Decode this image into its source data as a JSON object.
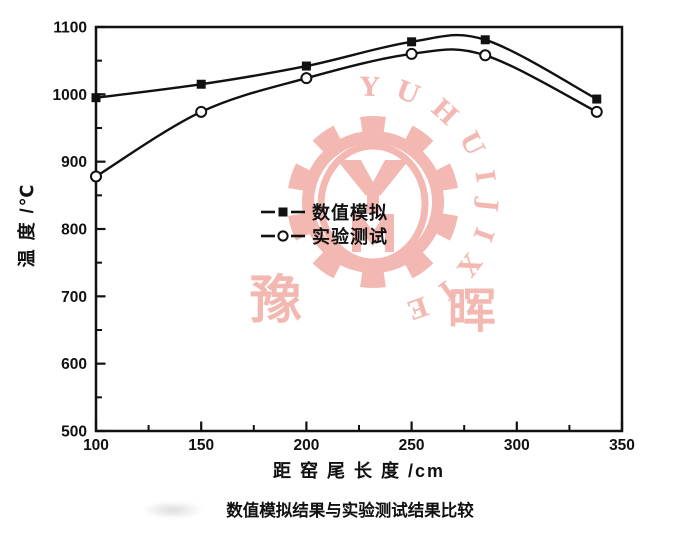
{
  "figure": {
    "caption": "数值模拟结果与实验测试结果比较"
  },
  "chart_data": {
    "type": "line",
    "title": "",
    "xlabel": "距 窑 尾 长 度 /cm",
    "ylabel": "温 度 /℃",
    "xlim": [
      100,
      350
    ],
    "ylim": [
      500,
      1100
    ],
    "x_major_ticks": [
      100,
      150,
      200,
      250,
      300,
      350
    ],
    "x_minor_ticks": [
      125,
      175,
      225,
      275,
      325
    ],
    "y_major_ticks": [
      500,
      600,
      700,
      800,
      900,
      1000,
      1100
    ],
    "y_minor_ticks": [
      550,
      650,
      750,
      850,
      950,
      1050
    ],
    "grid": false,
    "legend_position": "inside center-left",
    "line_color": "#111111",
    "series": [
      {
        "name": "数值模拟",
        "marker": "filled-square",
        "x": [
          100,
          150,
          200,
          250,
          285,
          338
        ],
        "y": [
          995,
          1015,
          1042,
          1078,
          1081,
          993
        ]
      },
      {
        "name": "实验测试",
        "marker": "open-circle",
        "x": [
          100,
          150,
          200,
          250,
          285,
          338
        ],
        "y": [
          878,
          974,
          1024,
          1060,
          1058,
          974
        ]
      }
    ]
  },
  "watermark": {
    "ring_text": "YUHUIJIXIE",
    "char_left": "豫",
    "char_right": "晖",
    "color": "#f2b1a9"
  }
}
